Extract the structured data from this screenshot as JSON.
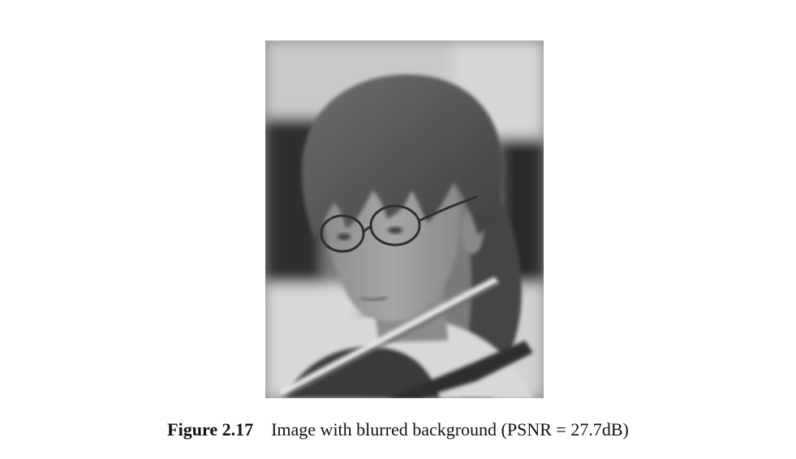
{
  "figure": {
    "label": "Figure 2.17",
    "caption": "Image with blurred background (PSNR = 27.7dB)",
    "image_colors": {
      "background_dark": "#2e2e2e",
      "background_light": "#c8c8c8",
      "hair": "#5a5a5a",
      "skin": "#9a9a9a",
      "shirt": "#dcdcdc",
      "violin": "#3a3a3a"
    }
  }
}
